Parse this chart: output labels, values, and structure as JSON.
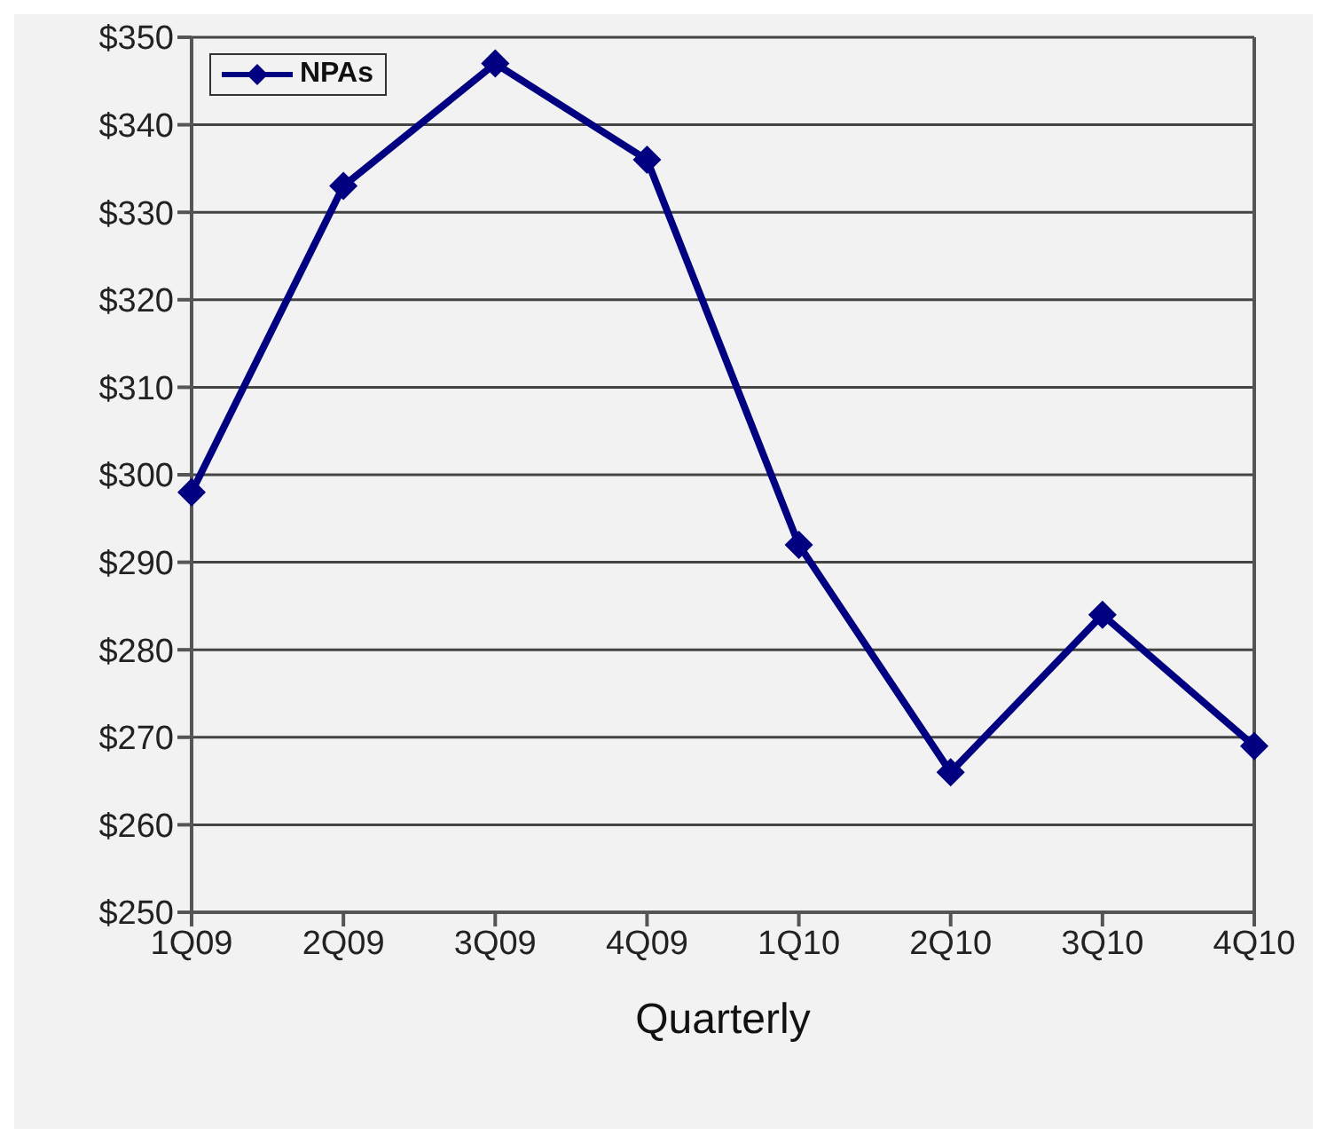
{
  "chart_data": {
    "type": "line",
    "xlabel": "Quarterly",
    "categories": [
      "1Q09",
      "2Q09",
      "3Q09",
      "4Q09",
      "1Q10",
      "2Q10",
      "3Q10",
      "4Q10"
    ],
    "series": [
      {
        "name": "NPAs",
        "color": "#000080",
        "values": [
          298,
          333,
          347,
          336,
          292,
          266,
          284,
          269
        ]
      }
    ],
    "ylim": [
      250,
      350
    ],
    "yticks": [
      {
        "value": 250,
        "label": "$250"
      },
      {
        "value": 260,
        "label": "$260"
      },
      {
        "value": 270,
        "label": "$270"
      },
      {
        "value": 280,
        "label": "$280"
      },
      {
        "value": 290,
        "label": "$290"
      },
      {
        "value": 300,
        "label": "$300"
      },
      {
        "value": 310,
        "label": "$310"
      },
      {
        "value": 320,
        "label": "$320"
      },
      {
        "value": 330,
        "label": "$330"
      },
      {
        "value": 340,
        "label": "$340"
      },
      {
        "value": 350,
        "label": "$350"
      }
    ],
    "grid": "y",
    "legend": "top left",
    "marker": "diamond"
  }
}
